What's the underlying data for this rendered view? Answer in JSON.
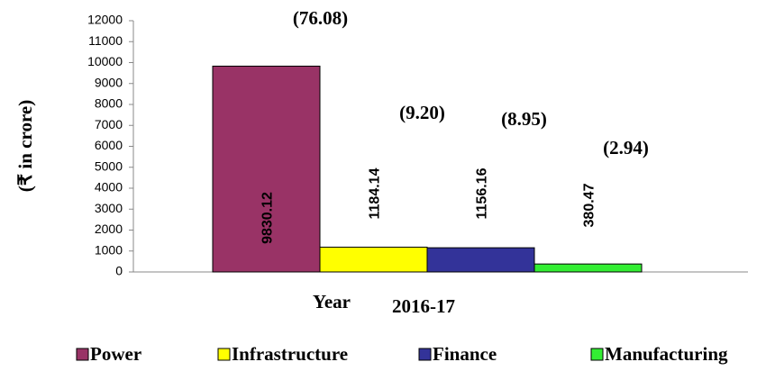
{
  "chart_data": {
    "type": "bar",
    "y_label": "(₹ in crore)",
    "x_label": "Year",
    "categories": [
      "2016-17"
    ],
    "series": [
      {
        "name": "Power",
        "color": "#993366",
        "values": [
          9830.12
        ]
      },
      {
        "name": "Infrastructure",
        "color": "#ffff00",
        "values": [
          1184.14
        ]
      },
      {
        "name": "Finance",
        "color": "#333399",
        "values": [
          1156.16
        ]
      },
      {
        "name": "Manufacturing",
        "color": "#33ee33",
        "values": [
          380.47
        ]
      }
    ],
    "annotations": [
      "(76.08)",
      "(9.20)",
      "(8.95)",
      "(2.94)"
    ],
    "ylim": [
      0,
      12000
    ],
    "yticks": [
      0,
      1000,
      2000,
      3000,
      4000,
      5000,
      6000,
      7000,
      8000,
      9000,
      10000,
      11000,
      12000
    ],
    "legend": "bottom"
  }
}
